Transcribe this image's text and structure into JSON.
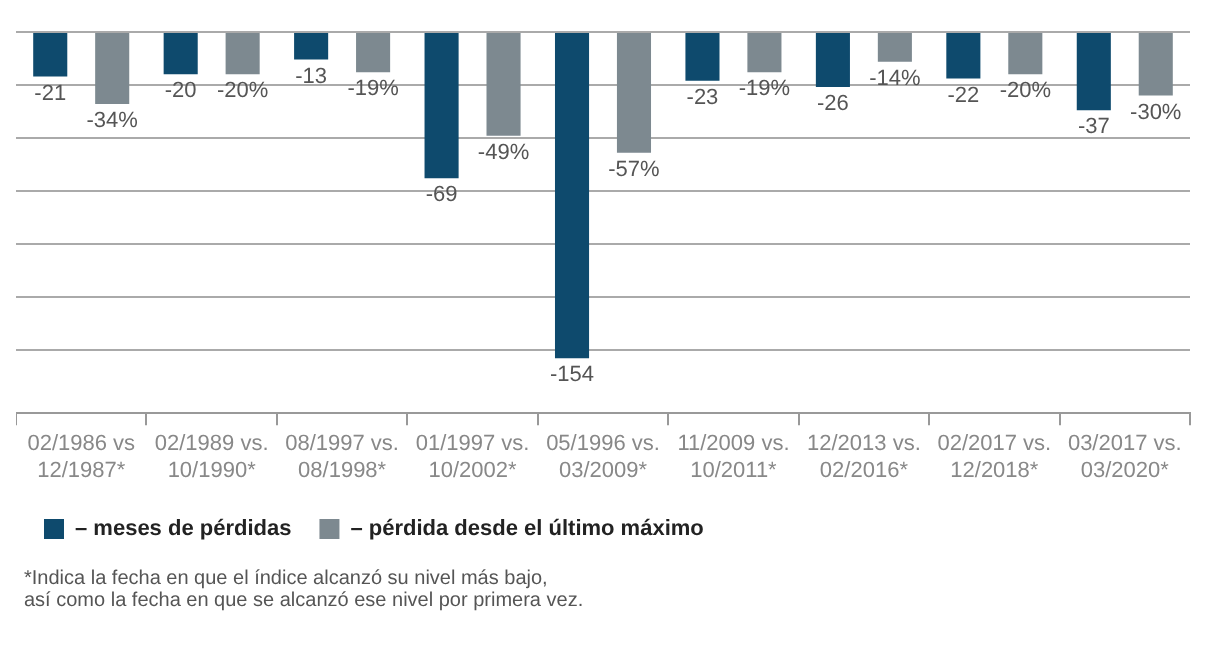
{
  "chart_data": {
    "type": "bar",
    "categories": [
      "02/1986 vs 12/1987*",
      "02/1989 vs. 10/1990*",
      "08/1997 vs. 08/1998*",
      "01/1997 vs. 10/2002*",
      "05/1996 vs. 03/2009*",
      "11/2009 vs. 10/2011*",
      "12/2013 vs. 02/2016*",
      "02/2017 vs. 12/2018*",
      "03/2017 vs. 03/2020*"
    ],
    "series": [
      {
        "name": "– meses de pérdidas",
        "color": "#0e4a6d",
        "values": [
          -21,
          -20,
          -13,
          -69,
          -154,
          -23,
          -26,
          -22,
          -37
        ],
        "value_labels": [
          "-21",
          "-20",
          "-13",
          "-69",
          "-154",
          "-23",
          "-26",
          "-22",
          "-37"
        ]
      },
      {
        "name": "– pérdida desde el último máximo",
        "color": "#7d8990",
        "values": [
          -34,
          -20,
          -19,
          -49,
          -57,
          -19,
          -14,
          -20,
          -30
        ],
        "value_labels": [
          "-34%",
          "-20%",
          "-19%",
          "-49%",
          "-57%",
          "-19%",
          "-14%",
          "-20%",
          "-30%"
        ]
      }
    ],
    "ylim": [
      -180,
      0
    ],
    "yticks": [
      {
        "value": -150,
        "label": null
      },
      {
        "value": -125,
        "label": null
      },
      {
        "value": -100,
        "label": null
      },
      {
        "value": -75,
        "label": null
      },
      {
        "value": -50,
        "label": null
      },
      {
        "value": -25,
        "label": null
      },
      {
        "value": 0,
        "label": null
      }
    ],
    "tick_labels": "x",
    "grid": "y",
    "legend": "bottom",
    "annotations": [
      "*Indica la fecha en que el índice alcanzó su nivel más bajo,\nasí como la fecha en que se alcanzó ese nivel por primera vez."
    ]
  }
}
